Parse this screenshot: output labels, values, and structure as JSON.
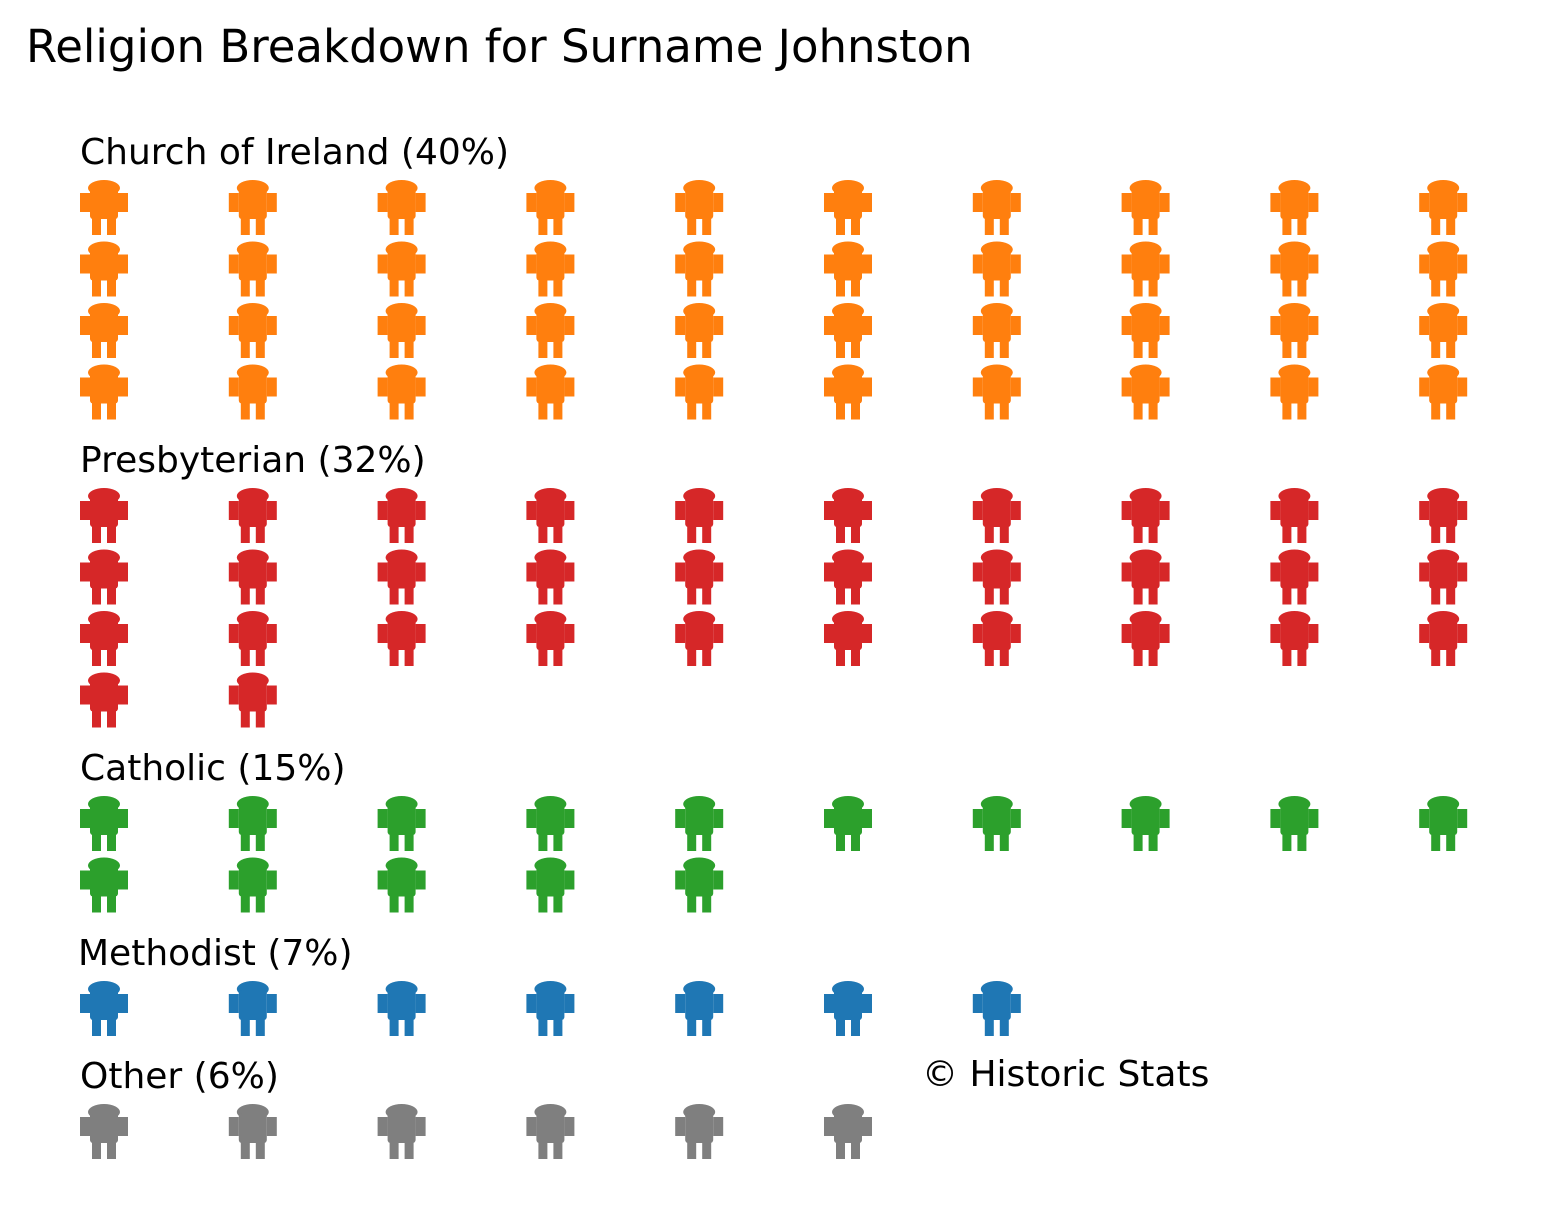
{
  "chart_data": {
    "type": "pictograph",
    "title": "Religion Breakdown for Surname Johnston",
    "icon": "person-icon",
    "icons_per_row": 10,
    "groups": [
      {
        "label": "Church of Ireland (40%)",
        "category": "Church of Ireland",
        "percent": 40,
        "count": 40,
        "color": "#ff7f0e"
      },
      {
        "label": "Presbyterian (32%)",
        "category": "Presbyterian",
        "percent": 32,
        "count": 32,
        "color": "#d62728"
      },
      {
        "label": "Catholic (15%)",
        "category": "Catholic",
        "percent": 15,
        "count": 15,
        "color": "#2ca02c"
      },
      {
        "label": "Methodist (7%)",
        "category": "Methodist",
        "percent": 7,
        "count": 7,
        "color": "#1f77b4"
      },
      {
        "label": "Other (6%)",
        "category": "Other",
        "percent": 6,
        "count": 6,
        "color": "#7f7f7f"
      }
    ],
    "credit": "© Historic Stats"
  }
}
